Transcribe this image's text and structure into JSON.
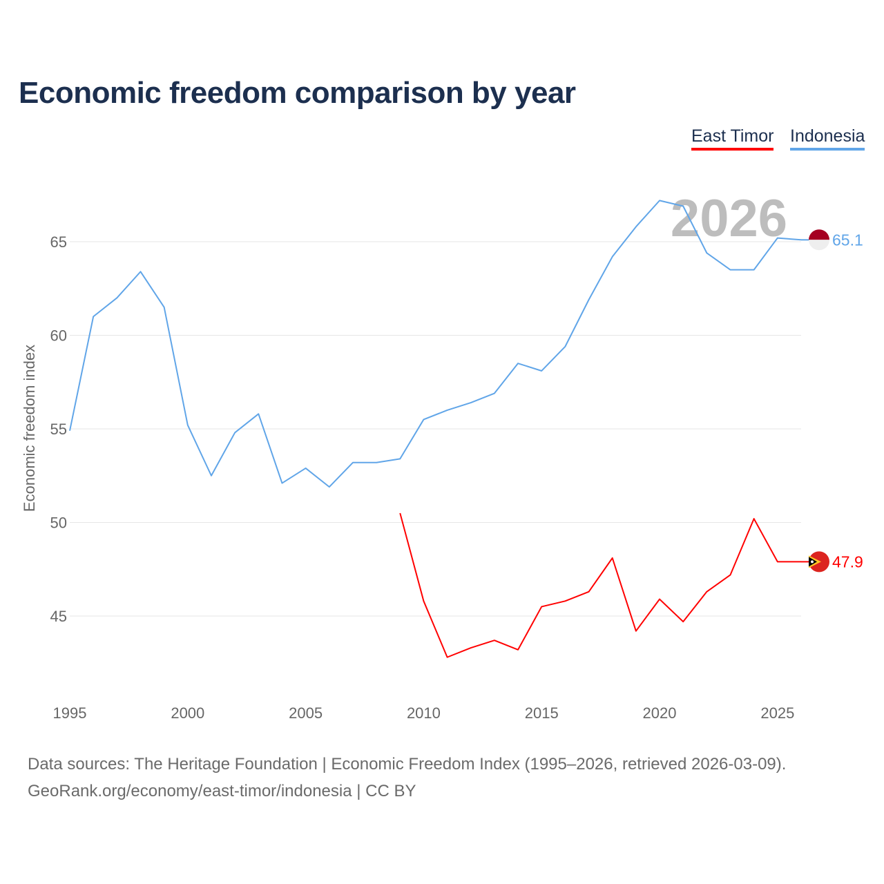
{
  "title": "Economic freedom comparison by year",
  "footer": {
    "line1": "Data sources: The Heritage Foundation | Economic Freedom Index (1995–2026, retrieved 2026-03-09).",
    "line2": "GeoRank.org/economy/east-timor/indonesia | CC BY"
  },
  "chart_data": {
    "type": "line",
    "title": "Economic freedom comparison by year",
    "xlabel": "",
    "ylabel": "Economic freedom index",
    "xlim": [
      1995,
      2026
    ],
    "ylim": [
      41,
      69
    ],
    "xticks": [
      1995,
      2000,
      2005,
      2010,
      2015,
      2020,
      2025
    ],
    "yticks": [
      45,
      50,
      55,
      60,
      65
    ],
    "year_watermark": "2026",
    "legend_position": "top-right",
    "series": [
      {
        "name": "East Timor",
        "color": "#ff0000",
        "flag": "east-timor-flag",
        "end_label": "47.9",
        "x": [
          2009,
          2010,
          2011,
          2012,
          2013,
          2014,
          2015,
          2016,
          2017,
          2018,
          2019,
          2020,
          2021,
          2022,
          2023,
          2024,
          2025,
          2026
        ],
        "values": [
          50.5,
          45.8,
          42.8,
          43.3,
          43.7,
          43.2,
          45.5,
          45.8,
          46.3,
          48.1,
          44.2,
          45.9,
          44.7,
          46.3,
          47.2,
          50.2,
          47.9,
          47.9
        ]
      },
      {
        "name": "Indonesia",
        "color": "#60a5e8",
        "flag": "indonesia-flag",
        "end_label": "65.1",
        "x": [
          1995,
          1996,
          1997,
          1998,
          1999,
          2000,
          2001,
          2002,
          2003,
          2004,
          2005,
          2006,
          2007,
          2008,
          2009,
          2010,
          2011,
          2012,
          2013,
          2014,
          2015,
          2016,
          2017,
          2018,
          2019,
          2020,
          2021,
          2022,
          2023,
          2024,
          2025,
          2026
        ],
        "values": [
          54.9,
          61.0,
          62.0,
          63.4,
          61.5,
          55.2,
          52.5,
          54.8,
          55.8,
          52.1,
          52.9,
          51.9,
          53.2,
          53.2,
          53.4,
          55.5,
          56.0,
          56.4,
          56.9,
          58.5,
          58.1,
          59.4,
          61.9,
          64.2,
          65.8,
          67.2,
          66.9,
          64.4,
          63.5,
          63.5,
          65.2,
          65.1
        ]
      }
    ]
  }
}
